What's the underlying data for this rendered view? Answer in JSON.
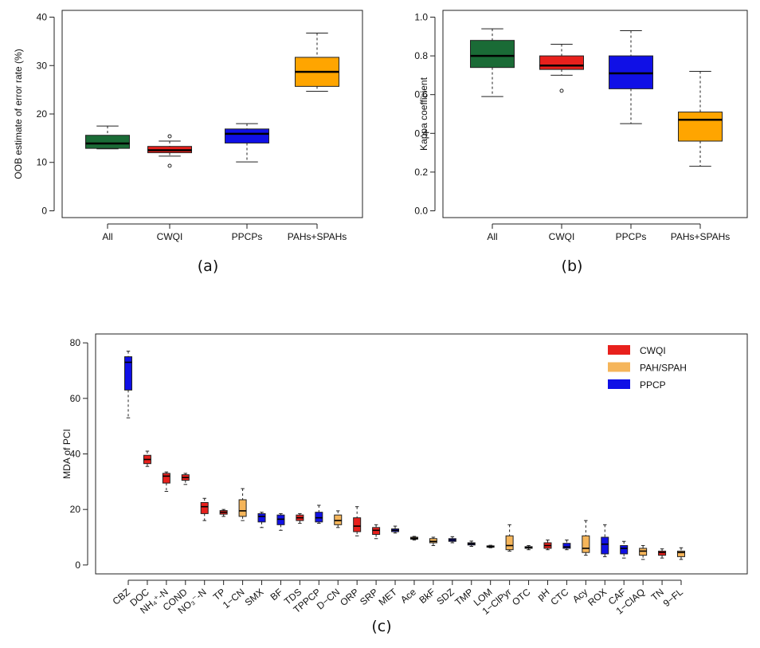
{
  "chart_data": [
    {
      "type": "boxplot",
      "panel": "(a)",
      "caption": "(a)",
      "ylabel": "OOB estimate of error rate (%)",
      "ylim": [
        0,
        40
      ],
      "yticks": [
        0,
        10,
        20,
        30,
        40
      ],
      "categories": [
        "All",
        "CWQI",
        "PPCPs",
        "PAHs+SPAHs"
      ],
      "colors": [
        "#1a6b36",
        "#e8201c",
        "#1010e6",
        "#ffa500"
      ],
      "boxes": [
        {
          "min": 12.8,
          "q1": 12.9,
          "median": 13.9,
          "q3": 15.6,
          "max": 17.5,
          "outliers": []
        },
        {
          "min": 11.3,
          "q1": 12.0,
          "median": 12.5,
          "q3": 13.3,
          "max": 14.4,
          "outliers": [
            15.4,
            9.3
          ]
        },
        {
          "min": 10.1,
          "q1": 14.0,
          "median": 15.9,
          "q3": 16.9,
          "max": 18.0,
          "outliers": []
        },
        {
          "min": 24.7,
          "q1": 25.7,
          "median": 28.7,
          "q3": 31.7,
          "max": 36.7,
          "outliers": []
        }
      ]
    },
    {
      "type": "boxplot",
      "panel": "(b)",
      "caption": "(b)",
      "ylabel": "Kappa coefficient",
      "ylim": [
        0,
        1
      ],
      "yticks": [
        "0.0",
        "0.2",
        "0.4",
        "0.6",
        "0.8",
        "1.0"
      ],
      "categories": [
        "All",
        "CWQI",
        "PPCPs",
        "PAHs+SPAHs"
      ],
      "colors": [
        "#1a6b36",
        "#e8201c",
        "#1010e6",
        "#ffa500"
      ],
      "boxes": [
        {
          "min": 0.59,
          "q1": 0.74,
          "median": 0.8,
          "q3": 0.88,
          "max": 0.94,
          "outliers": []
        },
        {
          "min": 0.7,
          "q1": 0.73,
          "median": 0.75,
          "q3": 0.8,
          "max": 0.86,
          "outliers": [
            0.62
          ]
        },
        {
          "min": 0.45,
          "q1": 0.63,
          "median": 0.71,
          "q3": 0.8,
          "max": 0.93,
          "outliers": []
        },
        {
          "min": 0.23,
          "q1": 0.36,
          "median": 0.47,
          "q3": 0.51,
          "max": 0.72,
          "outliers": []
        }
      ]
    },
    {
      "type": "boxplot",
      "panel": "(c)",
      "caption": "(c)",
      "ylabel": "MDA of PCI",
      "ylim": [
        0,
        80
      ],
      "yticks": [
        0,
        20,
        40,
        60,
        80
      ],
      "legend": [
        {
          "label": "CWQI",
          "color": "#e8201c"
        },
        {
          "label": "PAH/SPAH",
          "color": "#f5b55a"
        },
        {
          "label": "PPCP",
          "color": "#1010e6"
        }
      ],
      "legend_position": "top-right",
      "boxes": [
        {
          "label": "CBZ",
          "group": "PPCP",
          "min": 53,
          "q1": 63,
          "median": 73,
          "q3": 75,
          "max": 77
        },
        {
          "label": "DOC",
          "group": "CWQI",
          "min": 35.5,
          "q1": 36.5,
          "median": 38,
          "q3": 39.5,
          "max": 41
        },
        {
          "label": "NH₄⁺-N",
          "group": "CWQI",
          "min": 26.5,
          "q1": 29.5,
          "median": 32,
          "q3": 33,
          "max": 33.5
        },
        {
          "label": "COND",
          "group": "CWQI",
          "min": 29,
          "q1": 30.5,
          "median": 31.5,
          "q3": 32.5,
          "max": 33
        },
        {
          "label": "NO₃⁻-N",
          "group": "CWQI",
          "min": 16,
          "q1": 18.5,
          "median": 21,
          "q3": 22.5,
          "max": 24
        },
        {
          "label": "TP",
          "group": "CWQI",
          "min": 17.5,
          "q1": 18.3,
          "median": 19,
          "q3": 19.6,
          "max": 20
        },
        {
          "label": "1−CN",
          "group": "PAH/SPAH",
          "min": 16,
          "q1": 17.5,
          "median": 19.5,
          "q3": 23.5,
          "max": 27.5
        },
        {
          "label": "SMX",
          "group": "PPCP",
          "min": 13.5,
          "q1": 15.5,
          "median": 17.5,
          "q3": 18.5,
          "max": 19
        },
        {
          "label": "BF",
          "group": "PPCP",
          "min": 12.5,
          "q1": 14.5,
          "median": 16.5,
          "q3": 18,
          "max": 18.5
        },
        {
          "label": "TDS",
          "group": "CWQI",
          "min": 15,
          "q1": 16,
          "median": 17,
          "q3": 18,
          "max": 18.5
        },
        {
          "label": "TPPCP",
          "group": "PPCP",
          "min": 15,
          "q1": 15.5,
          "median": 17,
          "q3": 19,
          "max": 21.5
        },
        {
          "label": "D−CN",
          "group": "PAH/SPAH",
          "min": 13.5,
          "q1": 14.5,
          "median": 16,
          "q3": 18,
          "max": 19.5
        },
        {
          "label": "ORP",
          "group": "CWQI",
          "min": 10.5,
          "q1": 12,
          "median": 14,
          "q3": 17,
          "max": 21
        },
        {
          "label": "SRP",
          "group": "CWQI",
          "min": 9.5,
          "q1": 11,
          "median": 12.5,
          "q3": 13.5,
          "max": 14.5
        },
        {
          "label": "MET",
          "group": "PPCP",
          "min": 11.5,
          "q1": 12,
          "median": 12.5,
          "q3": 13,
          "max": 14
        },
        {
          "label": "Ace",
          "group": "PAH/SPAH",
          "min": 9,
          "q1": 9.3,
          "median": 9.6,
          "q3": 10,
          "max": 10.3
        },
        {
          "label": "BkF",
          "group": "PAH/SPAH",
          "min": 7,
          "q1": 8,
          "median": 8.5,
          "q3": 9.5,
          "max": 10
        },
        {
          "label": "SDZ",
          "group": "PPCP",
          "min": 8,
          "q1": 8.5,
          "median": 9,
          "q3": 9.5,
          "max": 10.2
        },
        {
          "label": "TMP",
          "group": "PPCP",
          "min": 6.7,
          "q1": 7.2,
          "median": 7.6,
          "q3": 8,
          "max": 8.6
        },
        {
          "label": "LOM",
          "group": "PPCP",
          "min": 6.2,
          "q1": 6.4,
          "median": 6.6,
          "q3": 6.9,
          "max": 7.1
        },
        {
          "label": "1−ClPyr",
          "group": "PAH/SPAH",
          "min": 5,
          "q1": 5.5,
          "median": 7,
          "q3": 10.5,
          "max": 14.5
        },
        {
          "label": "OTC",
          "group": "PPCP",
          "min": 5.5,
          "q1": 6,
          "median": 6.3,
          "q3": 6.6,
          "max": 7
        },
        {
          "label": "pH",
          "group": "CWQI",
          "min": 5.5,
          "q1": 6,
          "median": 7,
          "q3": 8,
          "max": 9
        },
        {
          "label": "CTC",
          "group": "PPCP",
          "min": 5.5,
          "q1": 6,
          "median": 6.5,
          "q3": 7.8,
          "max": 9
        },
        {
          "label": "Acy",
          "group": "PAH/SPAH",
          "min": 3.5,
          "q1": 4.5,
          "median": 6,
          "q3": 10.5,
          "max": 16
        },
        {
          "label": "ROX",
          "group": "PPCP",
          "min": 3,
          "q1": 4,
          "median": 7.5,
          "q3": 10,
          "max": 14.5
        },
        {
          "label": "CAF",
          "group": "PPCP",
          "min": 2.5,
          "q1": 4,
          "median": 6,
          "q3": 7,
          "max": 8.5
        },
        {
          "label": "1−ClAQ",
          "group": "PAH/SPAH",
          "min": 2,
          "q1": 3.5,
          "median": 5,
          "q3": 6,
          "max": 7
        },
        {
          "label": "TN",
          "group": "CWQI",
          "min": 2.5,
          "q1": 3.5,
          "median": 4.5,
          "q3": 5,
          "max": 5.8
        },
        {
          "label": "9−FL",
          "group": "PAH/SPAH",
          "min": 2,
          "q1": 3,
          "median": 4.5,
          "q3": 5,
          "max": 6.2
        }
      ]
    }
  ]
}
